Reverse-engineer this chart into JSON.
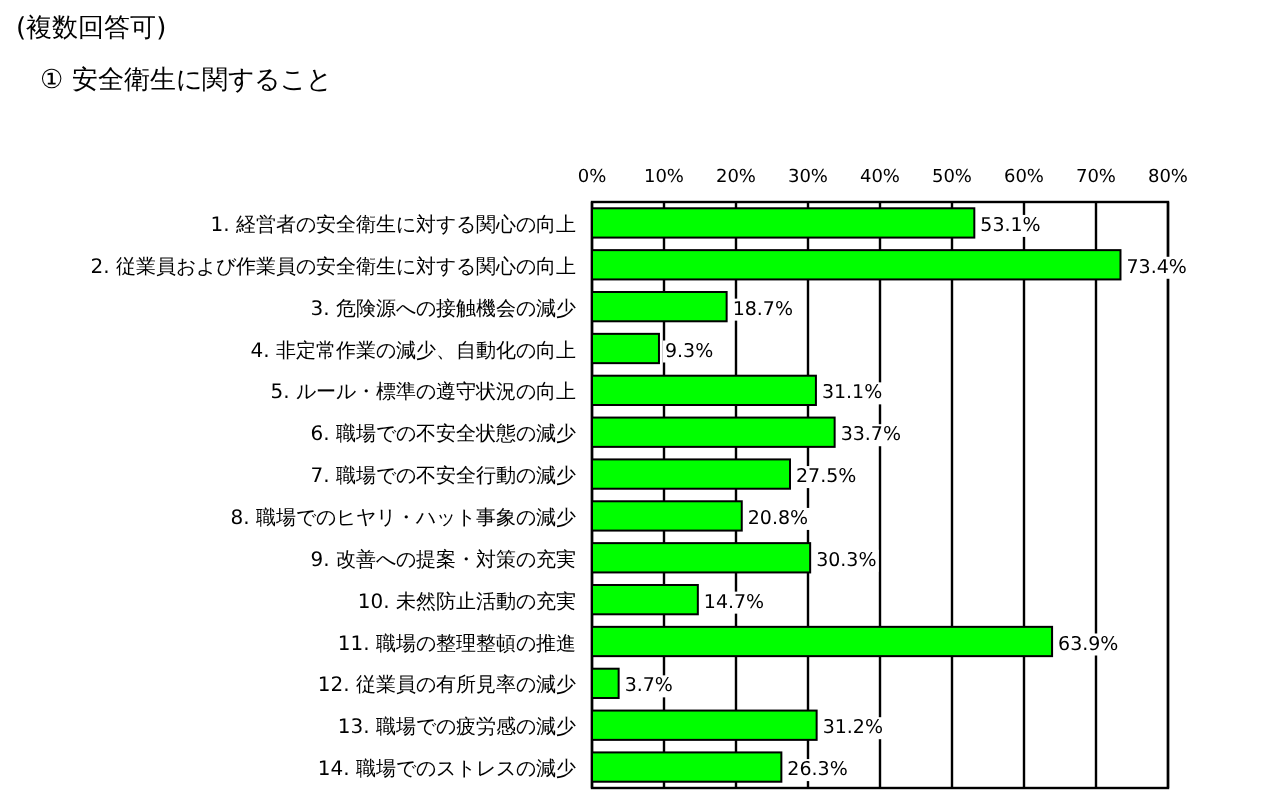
{
  "chart_data": {
    "type": "bar",
    "orientation": "horizontal",
    "title": "(複数回答可)",
    "subtitle": "① 安全衛生に関すること",
    "categories": [
      "1. 経営者の安全衛生に対する関心の向上",
      "2. 従業員および作業員の安全衛生に対する関心の向上",
      "3. 危険源への接触機会の減少",
      "4. 非定常作業の減少、自動化の向上",
      "5. ルール・標準の遵守状況の向上",
      "6. 職場での不安全状態の減少",
      "7. 職場での不安全行動の減少",
      "8. 職場でのヒヤリ・ハット事象の減少",
      "9. 改善への提案・対策の充実",
      "10. 未然防止活動の充実",
      "11. 職場の整理整頓の推進",
      "12. 従業員の有所見率の減少",
      "13. 職場での疲労感の減少",
      "14. 職場でのストレスの減少"
    ],
    "values": [
      53.1,
      73.4,
      18.7,
      9.3,
      31.1,
      33.7,
      27.5,
      20.8,
      30.3,
      14.7,
      63.9,
      3.7,
      31.2,
      26.3
    ],
    "value_labels": [
      "53.1%",
      "73.4%",
      "18.7%",
      "9.3%",
      "31.1%",
      "33.7%",
      "27.5%",
      "20.8%",
      "30.3%",
      "14.7%",
      "63.9%",
      "3.7%",
      "31.2%",
      "26.3%"
    ],
    "color": "#00ff00",
    "xlim": [
      0,
      80
    ],
    "xticks": [
      {
        "value": 0,
        "label": "0%"
      },
      {
        "value": 10,
        "label": "10%"
      },
      {
        "value": 20,
        "label": "20%"
      },
      {
        "value": 30,
        "label": "30%"
      },
      {
        "value": 40,
        "label": "40%"
      },
      {
        "value": 50,
        "label": "50%"
      },
      {
        "value": 60,
        "label": "60%"
      },
      {
        "value": 70,
        "label": "70%"
      },
      {
        "value": 80,
        "label": "80%"
      }
    ],
    "grid": "x"
  }
}
